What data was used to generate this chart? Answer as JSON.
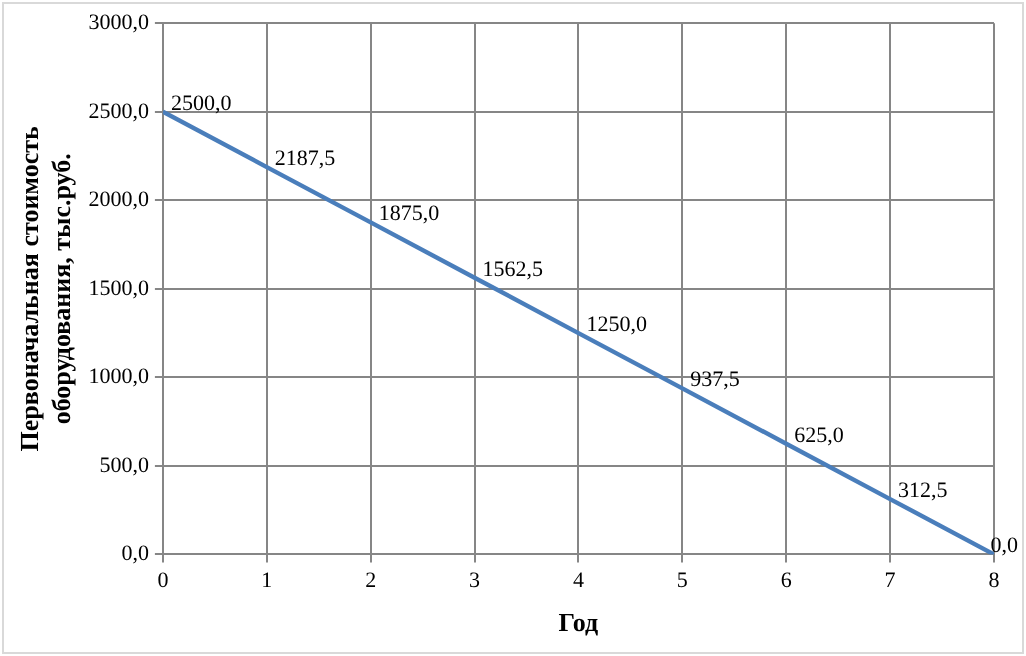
{
  "chart_data": {
    "type": "line",
    "xlabel": "Год",
    "ylabel": "Первоначальная стоимость оборудования, тыс.руб.",
    "x": [
      0,
      1,
      2,
      3,
      4,
      5,
      6,
      7,
      8
    ],
    "series": [
      {
        "color": "#4a7ebb",
        "values": [
          2500,
          2187.5,
          1875,
          1562.5,
          1250,
          937.5,
          625,
          312.5,
          0
        ],
        "value_labels": [
          "2500,0",
          "2187,5",
          "1875,0",
          "1562,5",
          "1250,0",
          "937,5",
          "625,0",
          "312,5",
          "0,0"
        ]
      }
    ],
    "xlim": [
      0,
      8
    ],
    "xticks": [
      0,
      1,
      2,
      3,
      4,
      5,
      6,
      7,
      8
    ],
    "ylim": [
      0,
      3000
    ],
    "yticks": [
      {
        "value": 0,
        "label": "0,0"
      },
      {
        "value": 500,
        "label": "500,0"
      },
      {
        "value": 1000,
        "label": "1000,0"
      },
      {
        "value": 1500,
        "label": "1500,0"
      },
      {
        "value": 2000,
        "label": "2000,0"
      },
      {
        "value": 2500,
        "label": "2500,0"
      },
      {
        "value": 3000,
        "label": "3000,0"
      }
    ],
    "grid": true,
    "legend": false,
    "marker": "none",
    "line_style": "solid"
  }
}
